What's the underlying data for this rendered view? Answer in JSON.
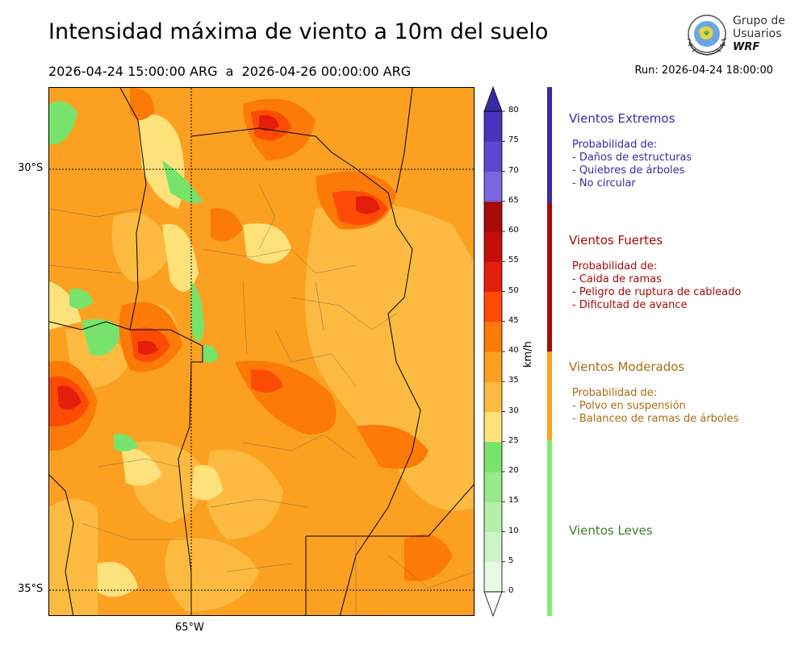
{
  "header": {
    "title": "Intensidad máxima de viento a 10m del suelo",
    "period": "2026-04-24 15:00:00 ARG  a  2026-04-26 00:00:00 ARG",
    "run": "Run: 2026-04-24 18:00:00"
  },
  "logo": {
    "line1": "Grupo de",
    "line2": "Usuarios",
    "line3": "WRF"
  },
  "map": {
    "lat_labels": [
      "30°S",
      "35°S"
    ],
    "lon_labels": [
      "65°W"
    ]
  },
  "colorbar": {
    "unit": "km/h",
    "ticks": [
      "0",
      "5",
      "10",
      "15",
      "20",
      "25",
      "30",
      "35",
      "40",
      "45",
      "50",
      "55",
      "60",
      "65",
      "70",
      "75",
      "80"
    ],
    "colors": [
      "#e5fbe3",
      "#ccf5c6",
      "#b3efa9",
      "#98e88c",
      "#78e36a",
      "#fde27b",
      "#fcbb40",
      "#fca022",
      "#fc7a08",
      "#fc4b05",
      "#e31e0a",
      "#c50d0a",
      "#a80a08",
      "#7a66dd",
      "#5e46ce",
      "#4933bf",
      "#3f27b4"
    ],
    "underflow": "#ffffff",
    "overflow": "#3a2aa6"
  },
  "categories": [
    {
      "title": "Vientos Extremos",
      "color": "#3a2aa6",
      "lines": [
        "Probabilidad de:",
        "- Daños de estructuras",
        "- Quiebres de árboles",
        "- No circular"
      ]
    },
    {
      "title": "Vientos Fuertes",
      "color": "#a80a08",
      "lines": [
        "Probabilidad de:",
        "- Caida de ramas",
        "- Peligro de ruptura de cableado",
        "- Dificultad de avance"
      ]
    },
    {
      "title": "Vientos Moderados",
      "color": "#a96d12",
      "band_color": "#fca022",
      "lines": [
        "Probabilidad de:",
        "- Polvo en suspensión",
        "- Balanceo de ramas de árboles"
      ]
    },
    {
      "title": "Vientos Leves",
      "color": "#3c7f2e",
      "band_color": "#7ef070",
      "lines": []
    }
  ]
}
